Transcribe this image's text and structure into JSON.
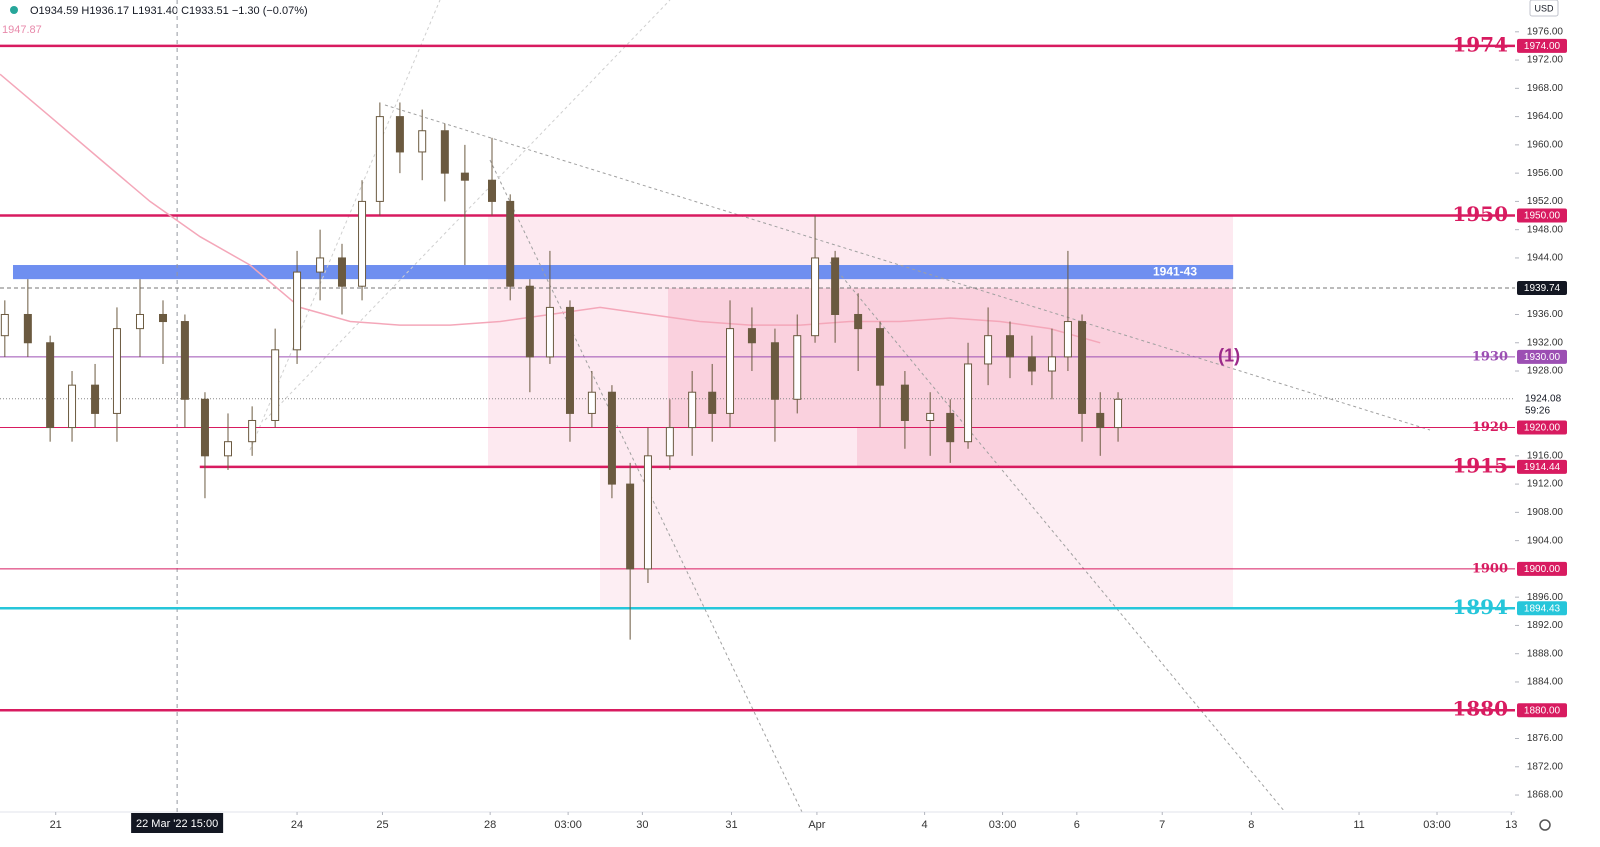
{
  "chart_data": {
    "type": "candlestick",
    "header": "O1934.59 H1936.17 L1931.40 C1933.51 −1.30 (−0.07%)",
    "ma_label": "1947.87",
    "currency": "USD",
    "ylim": [
      1865.6,
      1980.5
    ],
    "xlim": [
      0,
      408
    ],
    "grid": false,
    "yticks": [
      {
        "value": 1868,
        "label": "1868.00"
      },
      {
        "value": 1872,
        "label": "1872.00"
      },
      {
        "value": 1876,
        "label": "1876.00"
      },
      {
        "value": 1884,
        "label": "1884.00"
      },
      {
        "value": 1888,
        "label": "1888.00"
      },
      {
        "value": 1892,
        "label": "1892.00"
      },
      {
        "value": 1896,
        "label": "1896.00"
      },
      {
        "value": 1904,
        "label": "1904.00"
      },
      {
        "value": 1908,
        "label": "1908.00"
      },
      {
        "value": 1912,
        "label": "1912.00"
      },
      {
        "value": 1916,
        "label": "1916.00"
      },
      {
        "value": 1928,
        "label": "1928.00"
      },
      {
        "value": 1932,
        "label": "1932.00"
      },
      {
        "value": 1936,
        "label": "1936.00"
      },
      {
        "value": 1944,
        "label": "1944.00"
      },
      {
        "value": 1948,
        "label": "1948.00"
      },
      {
        "value": 1952,
        "label": "1952.00"
      },
      {
        "value": 1956,
        "label": "1956.00"
      },
      {
        "value": 1960,
        "label": "1960.00"
      },
      {
        "value": 1964,
        "label": "1964.00"
      },
      {
        "value": 1968,
        "label": "1968.00"
      },
      {
        "value": 1972,
        "label": "1972.00"
      },
      {
        "value": 1976,
        "label": "1976.00"
      }
    ],
    "xticks": [
      {
        "value": 15,
        "label": "21"
      },
      {
        "value": 80,
        "label": "24"
      },
      {
        "value": 103,
        "label": "25"
      },
      {
        "value": 132,
        "label": "28"
      },
      {
        "value": 153,
        "label": "03:00"
      },
      {
        "value": 173,
        "label": "30"
      },
      {
        "value": 197,
        "label": "31"
      },
      {
        "value": 220,
        "label": "Apr"
      },
      {
        "value": 249,
        "label": "4"
      },
      {
        "value": 270,
        "label": "03:00"
      },
      {
        "value": 290,
        "label": "6"
      },
      {
        "value": 313,
        "label": "7"
      },
      {
        "value": 337,
        "label": "8"
      },
      {
        "value": 366,
        "label": "11"
      },
      {
        "value": 387,
        "label": "03:00"
      },
      {
        "value": 407,
        "label": "13"
      }
    ],
    "crosshair": {
      "x": 47.7,
      "label": "22 Mar '22  15:00"
    },
    "candle_color": "#6b5a40",
    "candles": {
      "x": [
        1.3,
        7.5,
        13.5,
        19.4,
        25.6,
        31.5,
        37.7,
        43.9,
        49.8,
        55.2,
        61.4,
        67.9,
        74.1,
        80,
        86.2,
        92.1,
        97.5,
        102.3,
        107.7,
        113.7,
        119.8,
        125.2,
        132.5,
        137.4,
        142.7,
        148.1,
        153.5,
        159.4,
        164.8,
        169.7,
        174.5,
        180.4,
        186.4,
        191.8,
        196.6,
        202.5,
        208.7,
        214.7,
        219.5,
        224.9,
        231.1,
        237,
        243.7,
        250.5,
        255.9,
        260.7,
        266.1,
        272,
        277.9,
        283.3,
        287.6,
        291.4,
        296.3,
        301.1
      ],
      "open": [
        1933,
        1936,
        1932,
        1920,
        1926,
        1922,
        1934,
        1936,
        1935,
        1924,
        1916,
        1918,
        1921,
        1931,
        1942,
        1944,
        1940,
        1952,
        1964,
        1959,
        1962,
        1956,
        1955,
        1952,
        1940,
        1930,
        1937,
        1922,
        1925,
        1912,
        1900,
        1916,
        1920,
        1925,
        1922,
        1934,
        1932,
        1924,
        1933,
        1944,
        1936,
        1934,
        1926,
        1921,
        1922,
        1918,
        1929,
        1933,
        1930,
        1928,
        1930,
        1935,
        1922,
        1920
      ],
      "high": [
        1938,
        1941,
        1933,
        1928,
        1929,
        1937,
        1941,
        1938,
        1936,
        1925,
        1922,
        1923,
        1934,
        1945,
        1948,
        1946,
        1955,
        1966,
        1966,
        1965,
        1963,
        1960,
        1961,
        1953,
        1941,
        1945,
        1938,
        1928,
        1926,
        1915,
        1920,
        1924,
        1928,
        1929,
        1938,
        1937,
        1934,
        1936,
        1950,
        1945,
        1939,
        1935,
        1928,
        1925,
        1924,
        1932,
        1937,
        1935,
        1933,
        1934,
        1945,
        1936,
        1925,
        1925
      ],
      "low": [
        1930,
        1930,
        1918,
        1918,
        1920,
        1918,
        1930,
        1929,
        1920,
        1910,
        1914,
        1916,
        1920,
        1929,
        1938,
        1936,
        1938,
        1950,
        1956,
        1955,
        1952,
        1943,
        1950,
        1938,
        1925,
        1929,
        1918,
        1920,
        1910,
        1890,
        1898,
        1914,
        1916,
        1918,
        1920,
        1928,
        1918,
        1922,
        1932,
        1932,
        1928,
        1920,
        1917,
        1916,
        1915,
        1917,
        1926,
        1927,
        1926,
        1924,
        1928,
        1918,
        1916,
        1918
      ],
      "close": [
        1936,
        1932,
        1920,
        1926,
        1922,
        1934,
        1936,
        1935,
        1924,
        1916,
        1918,
        1921,
        1931,
        1942,
        1944,
        1940,
        1952,
        1964,
        1959,
        1962,
        1956,
        1955,
        1952,
        1940,
        1930,
        1937,
        1922,
        1925,
        1912,
        1900,
        1916,
        1920,
        1925,
        1922,
        1934,
        1932,
        1924,
        1933,
        1944,
        1936,
        1934,
        1926,
        1921,
        1922,
        1918,
        1929,
        1933,
        1930,
        1928,
        1930,
        1935,
        1922,
        1920,
        1924
      ]
    },
    "ma": {
      "color": "#f4a7b9",
      "x": [
        0,
        13.5,
        26.9,
        40.4,
        53.9,
        67.3,
        80.8,
        94.3,
        107.7,
        121.2,
        134.7,
        148.1,
        161.6,
        175.1,
        188.5,
        202,
        215.5,
        228.9,
        242.4,
        255.9,
        269.3,
        282.8,
        296.3
      ],
      "values": [
        1970,
        1964,
        1958,
        1952,
        1947,
        1943,
        1937,
        1935,
        1934.5,
        1934.5,
        1935,
        1936,
        1937,
        1936,
        1935,
        1934.5,
        1934.5,
        1935,
        1935,
        1935.5,
        1935,
        1934,
        1932
      ]
    },
    "zone": {
      "label": "1941-43",
      "low": 1941,
      "high": 1943,
      "color": "#6f8ff0",
      "x": [
        3.5,
        332.1
      ]
    },
    "annotation": {
      "text": "(1)",
      "x": 331,
      "y": 1930,
      "color": "#9c2a8a"
    },
    "levels": [
      {
        "value": 1974,
        "label": "1974",
        "tag": "1974.00",
        "color": "#d81b60",
        "style": "thick"
      },
      {
        "value": 1950,
        "label": "1950",
        "tag": "1950.00",
        "color": "#d81b60",
        "style": "thick"
      },
      {
        "value": 1930,
        "label": "1930",
        "tag": "1930.00",
        "color": "#9c4fb3",
        "style": "thin"
      },
      {
        "value": 1920,
        "label": "1920",
        "tag": "1920.00",
        "color": "#d81b60",
        "style": "thin"
      },
      {
        "value": 1914.44,
        "label": "1915",
        "tag": "1914.44",
        "color": "#d81b60",
        "style": "thick",
        "start": 53.8
      },
      {
        "value": 1900,
        "label": "1900",
        "tag": "1900.00",
        "color": "#d81b60",
        "style": "thin"
      },
      {
        "value": 1894.43,
        "label": "1894",
        "tag": "1894.43",
        "color": "#26c6da",
        "style": "thick"
      },
      {
        "value": 1880,
        "label": "1880",
        "tag": "1880.00",
        "color": "#d81b60",
        "style": "thick"
      }
    ],
    "ref_line": {
      "value": 1939.74,
      "tag": "1939.74"
    },
    "last_price": {
      "value": 1924.08,
      "label": "1924.08",
      "countdown": "59:26"
    }
  }
}
